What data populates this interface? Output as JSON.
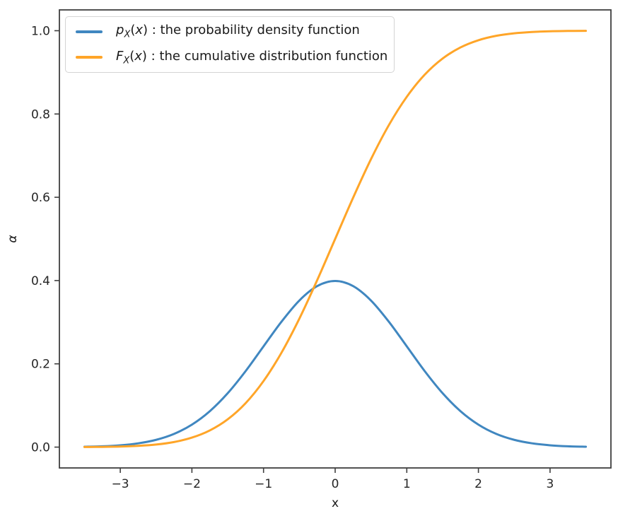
{
  "figure": {
    "background": "#ffffff",
    "spine_color": "#3f3f3f"
  },
  "legend": {
    "position": "upper left",
    "items": [
      {
        "id": "pdf",
        "f": "p",
        "sub": "X",
        "lp": "(",
        "var": "x",
        "rp": ")",
        "desc": " : the probability density function"
      },
      {
        "id": "cdf",
        "f": "F",
        "sub": "X",
        "lp": "(",
        "var": "x",
        "rp": ")",
        "desc": " : the cumulative distribution function"
      }
    ]
  },
  "chart_data": {
    "type": "line",
    "title": "",
    "xlabel": "x",
    "ylabel": "α",
    "grid": false,
    "legend_position": "upper left",
    "xlim": [
      -3.85,
      3.85
    ],
    "ylim": [
      -0.05,
      1.05
    ],
    "xticks": {
      "values": [
        -3,
        -2,
        -1,
        0,
        1,
        2,
        3
      ],
      "labels": [
        "−3",
        "−2",
        "−1",
        "0",
        "1",
        "2",
        "3"
      ]
    },
    "yticks": {
      "values": [
        0.0,
        0.2,
        0.4,
        0.6,
        0.8,
        1.0
      ],
      "labels": [
        "0.0",
        "0.2",
        "0.4",
        "0.6",
        "0.8",
        "1.0"
      ]
    },
    "x": [
      -3.5,
      -3.25,
      -3,
      -2.75,
      -2.5,
      -2.25,
      -2,
      -1.75,
      -1.5,
      -1.25,
      -1,
      -0.75,
      -0.5,
      -0.25,
      0,
      0.25,
      0.5,
      0.75,
      1,
      1.25,
      1.5,
      1.75,
      2,
      2.25,
      2.5,
      2.75,
      3,
      3.25,
      3.5
    ],
    "series": [
      {
        "id": "pdf",
        "name": "p_X(x) : the probability density function",
        "color": "#4087c0",
        "values": [
          0.0009,
          0.002,
          0.0044,
          0.0091,
          0.0175,
          0.0317,
          0.054,
          0.0863,
          0.1295,
          0.1826,
          0.242,
          0.3011,
          0.3521,
          0.3867,
          0.3989,
          0.3867,
          0.3521,
          0.3011,
          0.242,
          0.1826,
          0.1295,
          0.0863,
          0.054,
          0.0317,
          0.0175,
          0.0091,
          0.0044,
          0.002,
          0.0009
        ]
      },
      {
        "id": "cdf",
        "name": "F_X(x) : the cumulative distribution function",
        "color": "#ffa528",
        "values": [
          0.0002,
          0.0006,
          0.0013,
          0.003,
          0.0062,
          0.0122,
          0.0228,
          0.0401,
          0.0668,
          0.1056,
          0.1587,
          0.2266,
          0.3085,
          0.4013,
          0.5,
          0.5987,
          0.6915,
          0.7734,
          0.8413,
          0.8944,
          0.9332,
          0.9599,
          0.9772,
          0.9878,
          0.9938,
          0.997,
          0.9987,
          0.9994,
          0.9998
        ]
      }
    ]
  }
}
